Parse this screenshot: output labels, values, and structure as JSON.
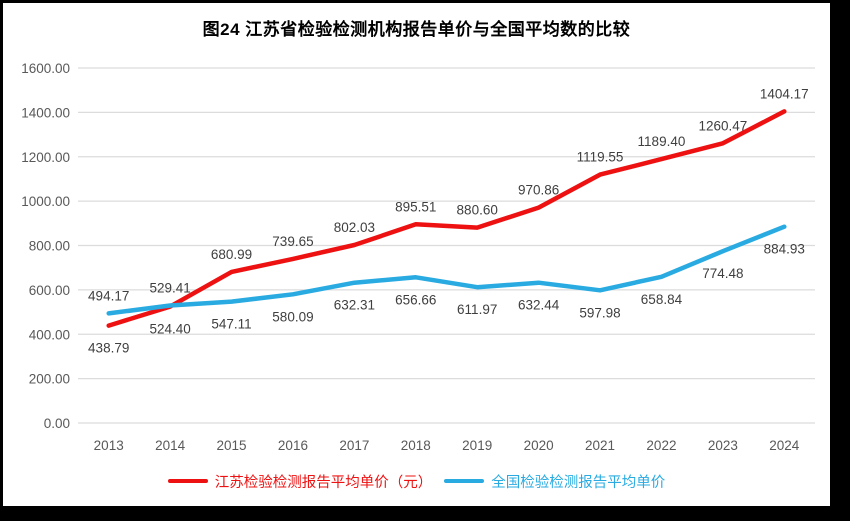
{
  "title": "图24  江苏省检验检测机构报告单价与全国平均数的比较",
  "chart_data": {
    "type": "line",
    "categories": [
      "2013",
      "2014",
      "2015",
      "2016",
      "2017",
      "2018",
      "2019",
      "2020",
      "2021",
      "2022",
      "2023",
      "2024"
    ],
    "series": [
      {
        "name": "江苏检验检测报告平均单价（元）",
        "color": "#ee1111",
        "values": [
          438.79,
          524.4,
          680.99,
          739.65,
          802.03,
          895.51,
          880.6,
          970.86,
          1119.55,
          1189.4,
          1260.47,
          1404.17
        ],
        "label_positions": [
          "below",
          "below",
          "above",
          "above",
          "above",
          "above",
          "above",
          "above",
          "above",
          "above",
          "above",
          "above"
        ]
      },
      {
        "name": "全国检验检测报告平均单价",
        "color": "#29abe2",
        "values": [
          494.17,
          529.41,
          547.11,
          580.09,
          632.31,
          656.66,
          611.97,
          632.44,
          597.98,
          658.84,
          774.48,
          884.93
        ],
        "label_positions": [
          "above",
          "above",
          "below",
          "below",
          "below",
          "below",
          "below",
          "below",
          "below",
          "below",
          "below",
          "below"
        ]
      }
    ],
    "ylim": [
      0,
      1600
    ],
    "ytick_step": 200,
    "ytick_labels": [
      "0.00",
      "200.00",
      "400.00",
      "600.00",
      "800.00",
      "1000.00",
      "1200.00",
      "1400.00",
      "1600.00"
    ],
    "grid": "horizontal",
    "legend_position": "bottom",
    "decimals": 2
  },
  "colors": {
    "grid": "#dcdcdc",
    "axis_text": "#595959",
    "data_label_text": "#3f3f3f",
    "frame": "#000000"
  }
}
